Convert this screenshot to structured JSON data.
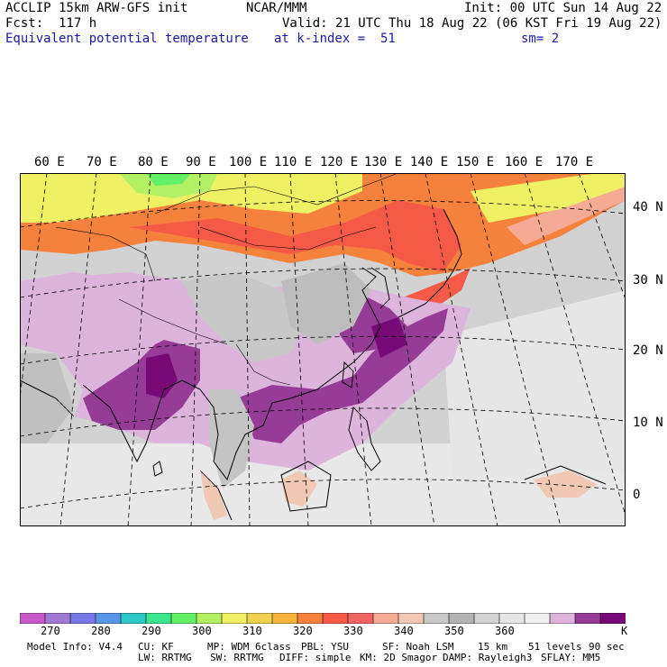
{
  "header": {
    "left_line1": "ACCLIP 15km ARW-GFS init",
    "left_line2": "Fcst:  117 h",
    "left_line3": "Equivalent potential temperature",
    "center_line1": "NCAR/MMM",
    "center_line2": "Valid: 21 UTC Thu 18 Aug 22 (06 KST Fri 19 Aug 22)",
    "center_line3": "at k-index =  51",
    "right_line1": "Init: 00 UTC Sun 14 Aug 22",
    "right_line3": "sm= 2"
  },
  "map": {
    "lon_labels": [
      "60 E",
      "70 E",
      "80 E",
      "90 E",
      "100 E",
      "110 E",
      "120 E",
      "130 E",
      "140 E",
      "150 E",
      "160 E",
      "170 E"
    ],
    "lat_labels": [
      "40 N",
      "30 N",
      "20 N",
      "10 N",
      "0"
    ]
  },
  "colorbar": {
    "unit": "K",
    "tick_labels": [
      "270",
      "280",
      "290",
      "300",
      "310",
      "320",
      "330",
      "340",
      "350",
      "360"
    ],
    "colors": [
      "#c85ac8",
      "#a07ad2",
      "#7878e6",
      "#5a96e6",
      "#2ec8c8",
      "#3ce68c",
      "#64f064",
      "#b4f064",
      "#f0f064",
      "#f0d250",
      "#f5b43c",
      "#f5823c",
      "#f55a46",
      "#f06464",
      "#f5aa96",
      "#f0c8b4",
      "#c8c8c8",
      "#b4b4b4",
      "#d2d2d2",
      "#e6e6e6",
      "#f0f0f0",
      "#dcb4dc",
      "#963c96",
      "#780a78"
    ]
  },
  "footer": {
    "line1": [
      "Model Info: V4.4",
      "CU: KF",
      "MP: WDM 6class",
      "PBL: YSU",
      "SF: Noah LSM",
      "15 km",
      "51 levels",
      "90 sec"
    ],
    "line2": [
      "LW: RRTMG",
      "SW: RRTMG",
      "DIFF: simple",
      "KM: 2D Smagor",
      "DAMP: Rayleigh3",
      "SFLAY: MM5"
    ]
  }
}
